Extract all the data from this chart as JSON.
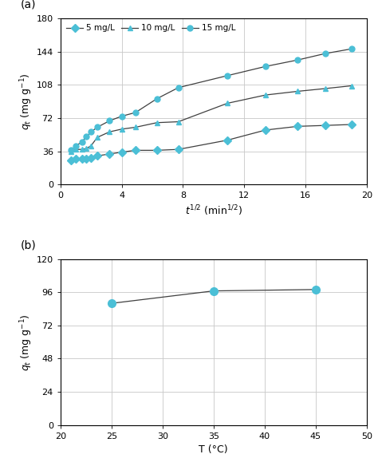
{
  "panel_a": {
    "series": [
      {
        "label": "5 mg/L",
        "marker": "D",
        "x": [
          0.7,
          1.0,
          1.4,
          1.7,
          2.0,
          2.4,
          3.2,
          4.0,
          4.9,
          6.3,
          7.7,
          10.9,
          13.4,
          15.5,
          17.3,
          19.0
        ],
        "y": [
          26,
          28,
          28,
          28,
          29,
          31,
          33,
          35,
          37,
          37,
          38,
          48,
          59,
          63,
          64,
          65
        ]
      },
      {
        "label": "10 mg/L",
        "marker": "^",
        "x": [
          0.7,
          1.0,
          1.4,
          1.7,
          2.0,
          2.4,
          3.2,
          4.0,
          4.9,
          6.3,
          7.7,
          10.9,
          13.4,
          15.5,
          17.3,
          19.0
        ],
        "y": [
          36,
          38,
          38,
          39,
          42,
          51,
          57,
          60,
          62,
          67,
          68,
          88,
          97,
          101,
          104,
          107
        ]
      },
      {
        "label": "15 mg/L",
        "marker": "o",
        "x": [
          0.7,
          1.0,
          1.4,
          1.7,
          2.0,
          2.4,
          3.2,
          4.0,
          4.9,
          6.3,
          7.7,
          10.9,
          13.4,
          15.5,
          17.3,
          19.0
        ],
        "y": [
          37,
          42,
          46,
          52,
          57,
          62,
          69,
          74,
          78,
          93,
          105,
          118,
          128,
          135,
          142,
          147
        ]
      }
    ],
    "xlabel": "$t^{1/2}$ (min$^{1/2}$)",
    "ylabel": "$q_t$ (mg g$^{-1}$)",
    "xlim": [
      0,
      20
    ],
    "ylim": [
      0,
      180
    ],
    "xticks": [
      0,
      4,
      8,
      12,
      16,
      20
    ],
    "yticks": [
      0,
      36,
      72,
      108,
      144,
      180
    ],
    "line_color": "#404040",
    "marker_color": "#4BBFD6",
    "label": "(a)"
  },
  "panel_b": {
    "x": [
      25,
      35,
      45
    ],
    "y": [
      88,
      97,
      98
    ],
    "xlabel": "T (°C)",
    "ylabel": "$q_t$ (mg g$^{-1}$)",
    "xlim": [
      20,
      50
    ],
    "ylim": [
      0,
      120
    ],
    "xticks": [
      20,
      25,
      30,
      35,
      40,
      45,
      50
    ],
    "yticks": [
      0,
      24,
      48,
      72,
      96,
      120
    ],
    "line_color": "#404040",
    "marker_color": "#4BBFD6",
    "label": "(b)"
  }
}
